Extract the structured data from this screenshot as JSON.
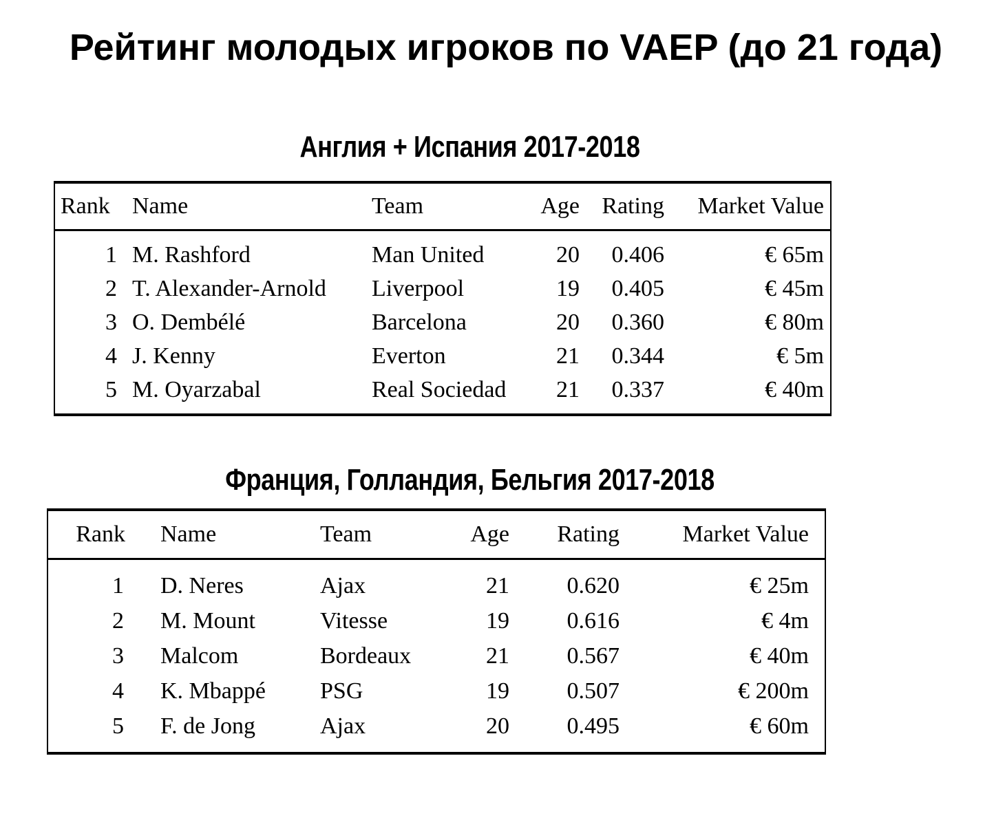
{
  "title": "Рейтинг молодых игроков по VAEP (до 21 года)",
  "tables": [
    {
      "subtitle": "Англия + Испания 2017-2018",
      "headers": [
        "Rank",
        "Name",
        "Team",
        "Age",
        "Rating",
        "Market Value"
      ],
      "rows": [
        [
          "1",
          "M. Rashford",
          "Man United",
          "20",
          "0.406",
          "€ 65m"
        ],
        [
          "2",
          "T. Alexander-Arnold",
          "Liverpool",
          "19",
          "0.405",
          "€ 45m"
        ],
        [
          "3",
          "O. Dembélé",
          "Barcelona",
          "20",
          "0.360",
          "€ 80m"
        ],
        [
          "4",
          "J. Kenny",
          "Everton",
          "21",
          "0.344",
          "€ 5m"
        ],
        [
          "5",
          "M. Oyarzabal",
          "Real Sociedad",
          "21",
          "0.337",
          "€ 40m"
        ]
      ]
    },
    {
      "subtitle": "Франция, Голландия, Бельгия 2017-2018",
      "headers": [
        "Rank",
        "Name",
        "Team",
        "Age",
        "Rating",
        "Market Value"
      ],
      "rows": [
        [
          "1",
          "D. Neres",
          "Ajax",
          "21",
          "0.620",
          "€ 25m"
        ],
        [
          "2",
          "M. Mount",
          "Vitesse",
          "19",
          "0.616",
          "€ 4m"
        ],
        [
          "3",
          "Malcom",
          "Bordeaux",
          "21",
          "0.567",
          "€ 40m"
        ],
        [
          "4",
          "K. Mbappé",
          "PSG",
          "19",
          "0.507",
          "€ 200m"
        ],
        [
          "5",
          "F. de Jong",
          "Ajax",
          "20",
          "0.495",
          "€ 60m"
        ]
      ]
    }
  ]
}
